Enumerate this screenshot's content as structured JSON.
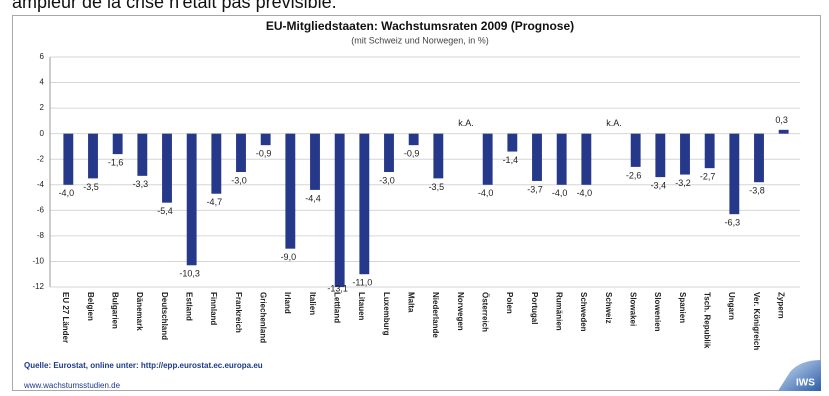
{
  "caption": "ampleur de la crise n'était pas prévisible.",
  "chart_data": {
    "type": "bar",
    "title": "EU-Mitgliedstaaten: Wachstumsraten 2009 (Prognose)",
    "subtitle": "(mit Schweiz und Norwegen, in %)",
    "categories": [
      "EU 27 Länder",
      "Belgien",
      "Bulgarien",
      "Dänemark",
      "Deutschland",
      "Estland",
      "Finnland",
      "Frankreich",
      "Griechenland",
      "Irland",
      "Italien",
      "Lettland",
      "Litauen",
      "Luxemburg",
      "Malta",
      "Niederlande",
      "Norwegen",
      "Österreich",
      "Polen",
      "Portugal",
      "Rumänien",
      "Schweden",
      "Schweiz",
      "Slowakei",
      "Slowenien",
      "Spanien",
      "Tsch. Republik",
      "Ungarn",
      "Ver. Königreich",
      "Zypern"
    ],
    "values": [
      -4.0,
      -3.5,
      -1.6,
      -3.3,
      -5.4,
      -10.3,
      -4.7,
      -3.0,
      -0.9,
      -9.0,
      -4.4,
      -13.1,
      -11.0,
      -3.0,
      -0.9,
      -3.5,
      null,
      -4.0,
      -1.4,
      -3.7,
      -4.0,
      -4.0,
      null,
      -2.6,
      -3.4,
      -3.2,
      -2.7,
      -6.3,
      -3.8,
      0.3
    ],
    "value_labels": [
      "-4,0",
      "-3,5",
      "-1,6",
      "-3,3",
      "-5,4",
      "-10,3",
      "-4,7",
      "-3,0",
      "-0,9",
      "-9,0",
      "-4,4",
      "-13,1",
      "-11,0",
      "-3,0",
      "-0,9",
      "-3,5",
      "k.A.",
      "-4,0",
      "-1,4",
      "-3,7",
      "-4,0",
      "-4,0",
      "k.A.",
      "-2,6",
      "-3,4",
      "-3,2",
      "-2,7",
      "-6,3",
      "-3,8",
      "0,3"
    ],
    "color": "#25388a",
    "ylim": [
      -12,
      6
    ],
    "yticks": [
      -12,
      -10,
      -8,
      -6,
      -4,
      -2,
      0,
      2,
      4,
      6
    ],
    "grid": true,
    "source": "Quelle: Eurostat, online unter: http://epp.eurostat.ec.europa.eu",
    "website": "www.wachstumsstudien.de",
    "logo": "IWS"
  }
}
